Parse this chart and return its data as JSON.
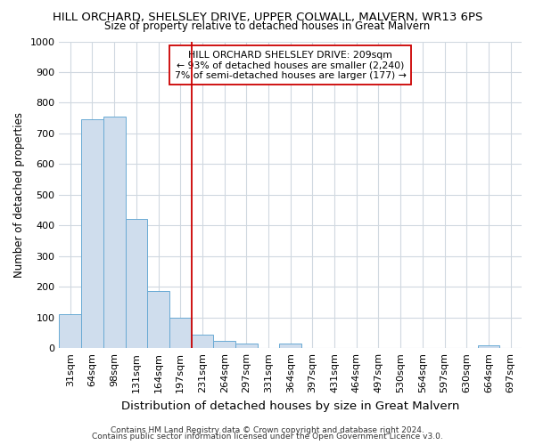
{
  "title": "HILL ORCHARD, SHELSLEY DRIVE, UPPER COLWALL, MALVERN, WR13 6PS",
  "subtitle": "Size of property relative to detached houses in Great Malvern",
  "xlabel": "Distribution of detached houses by size in Great Malvern",
  "ylabel": "Number of detached properties",
  "footer_line1": "Contains HM Land Registry data © Crown copyright and database right 2024.",
  "footer_line2": "Contains public sector information licensed under the Open Government Licence v3.0.",
  "bin_labels": [
    "31sqm",
    "64sqm",
    "98sqm",
    "131sqm",
    "164sqm",
    "197sqm",
    "231sqm",
    "264sqm",
    "297sqm",
    "331sqm",
    "364sqm",
    "397sqm",
    "431sqm",
    "464sqm",
    "497sqm",
    "530sqm",
    "564sqm",
    "597sqm",
    "630sqm",
    "664sqm",
    "697sqm"
  ],
  "bar_heights": [
    110,
    745,
    755,
    420,
    185,
    100,
    45,
    25,
    15,
    0,
    15,
    0,
    0,
    0,
    0,
    0,
    0,
    0,
    0,
    8,
    0
  ],
  "bar_color": "#cfdded",
  "bar_edge_color": "#6aaad4",
  "property_line_x": 5.5,
  "property_line_color": "#cc0000",
  "annotation_text": "HILL ORCHARD SHELSLEY DRIVE: 209sqm\n← 93% of detached houses are smaller (2,240)\n7% of semi-detached houses are larger (177) →",
  "annotation_box_color": "#ffffff",
  "annotation_box_edge_color": "#cc0000",
  "ylim": [
    0,
    1000
  ],
  "yticks": [
    0,
    100,
    200,
    300,
    400,
    500,
    600,
    700,
    800,
    900,
    1000
  ],
  "title_fontsize": 9.5,
  "subtitle_fontsize": 8.5,
  "axis_fontsize": 8.0,
  "xlabel_fontsize": 9.5,
  "ylabel_fontsize": 8.5,
  "tick_fontsize": 8.0,
  "footer_fontsize": 6.5,
  "background_color": "#ffffff",
  "grid_color": "#d0d8e0"
}
